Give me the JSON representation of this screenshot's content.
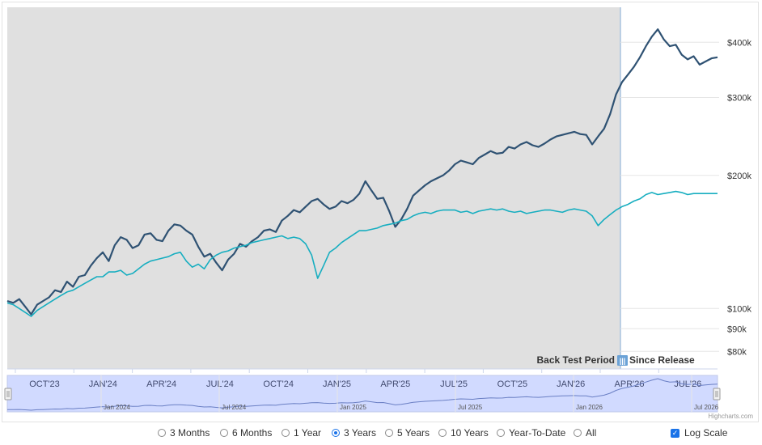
{
  "chart_data": {
    "type": "line",
    "log_scale": true,
    "backtest_label": "Back Test Period",
    "since_release_label": "Since Release",
    "y_ticks": [
      {
        "value": 80000,
        "label": "$80k"
      },
      {
        "value": 90000,
        "label": "$90k"
      },
      {
        "value": 100000,
        "label": "$100k"
      },
      {
        "value": 200000,
        "label": "$200k"
      },
      {
        "value": 300000,
        "label": "$300k"
      },
      {
        "value": 400000,
        "label": "$400k"
      }
    ],
    "x_ticks": [
      "OCT'23",
      "JAN'24",
      "APR'24",
      "JUL'24",
      "OCT'24",
      "JAN'25",
      "APR'25",
      "JUL'25",
      "OCT'25",
      "JAN'26",
      "APR'26",
      "JUL'26"
    ],
    "navigator_ticks": [
      "Jan 2024",
      "Jul 2024",
      "Jan 2025",
      "Jul 2025",
      "Jan 2026",
      "Jul 2026"
    ],
    "series": [
      {
        "color": "#2f5273",
        "values": [
          104000,
          103000,
          105000,
          101000,
          97000,
          102000,
          104000,
          106000,
          110000,
          109000,
          115000,
          112000,
          118000,
          119000,
          125000,
          130000,
          134000,
          128000,
          139000,
          145000,
          143000,
          137000,
          139000,
          147000,
          148000,
          143000,
          142000,
          150000,
          155000,
          154000,
          150000,
          147000,
          138000,
          131000,
          133000,
          127000,
          122000,
          129000,
          133000,
          140000,
          138000,
          142000,
          145000,
          150000,
          151000,
          149000,
          158000,
          162000,
          167000,
          165000,
          170000,
          175000,
          177000,
          172000,
          168000,
          170000,
          175000,
          173000,
          176000,
          182000,
          194000,
          185000,
          177000,
          178000,
          166000,
          153000,
          159000,
          168000,
          180000,
          185000,
          190000,
          194000,
          197000,
          200000,
          205000,
          212000,
          216000,
          214000,
          212000,
          219000,
          223000,
          227000,
          224000,
          225000,
          232000,
          230000,
          235000,
          238000,
          234000,
          232000,
          236000,
          241000,
          245000,
          247000,
          249000,
          251000,
          248000,
          247000,
          235000,
          245000,
          255000,
          275000,
          305000,
          325000,
          338000,
          352000,
          370000,
          392000,
          412000,
          428000,
          406000,
          392000,
          395000,
          375000,
          366000,
          372000,
          356000,
          362000,
          368000,
          370000
        ]
      },
      {
        "color": "#17aec0",
        "values": [
          103000,
          102000,
          100000,
          98000,
          96000,
          99000,
          101000,
          103000,
          105000,
          107000,
          109000,
          110000,
          112000,
          114000,
          116000,
          118000,
          118000,
          121000,
          121000,
          122000,
          119000,
          120000,
          123000,
          126000,
          128000,
          129000,
          130000,
          131000,
          133000,
          134000,
          128000,
          124000,
          126000,
          123000,
          129000,
          132000,
          134000,
          135000,
          137000,
          138000,
          139000,
          141000,
          142000,
          143000,
          144000,
          145000,
          146000,
          144000,
          145000,
          144000,
          140000,
          132000,
          117000,
          125000,
          134000,
          137000,
          141000,
          144000,
          147000,
          150000,
          150000,
          151000,
          152000,
          154000,
          155000,
          156000,
          158000,
          159000,
          162000,
          164000,
          165000,
          164000,
          166000,
          167000,
          167000,
          167000,
          165000,
          166000,
          164000,
          166000,
          167000,
          168000,
          167000,
          168000,
          166000,
          165000,
          166000,
          164000,
          165000,
          166000,
          167000,
          167000,
          166000,
          165000,
          167000,
          168000,
          167000,
          166000,
          162000,
          154000,
          159000,
          163000,
          167000,
          170000,
          172000,
          175000,
          177000,
          181000,
          183000,
          181000,
          182000,
          183000,
          184000,
          183000,
          181000,
          182000,
          182000,
          182000,
          182000,
          182000
        ]
      }
    ]
  },
  "controls": {
    "range_options": [
      {
        "label": "3 Months",
        "selected": false
      },
      {
        "label": "6 Months",
        "selected": false
      },
      {
        "label": "1 Year",
        "selected": false
      },
      {
        "label": "3 Years",
        "selected": true
      },
      {
        "label": "5 Years",
        "selected": false
      },
      {
        "label": "10 Years",
        "selected": false
      },
      {
        "label": "Year-To-Date",
        "selected": false
      },
      {
        "label": "All",
        "selected": false
      }
    ],
    "log_scale_label": "Log Scale",
    "credit": "Highcharts.com"
  }
}
